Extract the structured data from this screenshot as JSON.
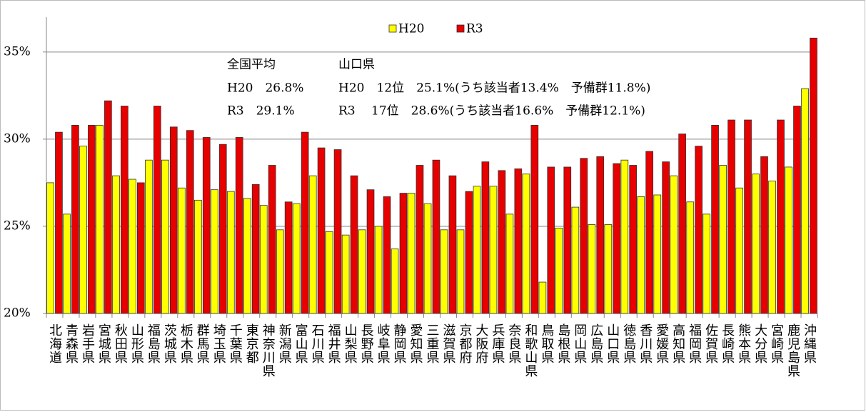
{
  "chart_data": {
    "type": "bar",
    "categories": [
      "北海道",
      "青森県",
      "岩手県",
      "宮城県",
      "秋田県",
      "山形県",
      "福島県",
      "茨城県",
      "栃木県",
      "群馬県",
      "埼玉県",
      "千葉県",
      "東京都",
      "神奈川県",
      "新潟県",
      "富山県",
      "石川県",
      "福井県",
      "山梨県",
      "長野県",
      "岐阜県",
      "静岡県",
      "愛知県",
      "三重県",
      "滋賀県",
      "京都府",
      "大阪府",
      "兵庫県",
      "奈良県",
      "和歌山県",
      "鳥取県",
      "島根県",
      "岡山県",
      "広島県",
      "山口県",
      "徳島県",
      "香川県",
      "愛媛県",
      "高知県",
      "福岡県",
      "佐賀県",
      "長崎県",
      "熊本県",
      "大分県",
      "宮崎県",
      "鹿児島県",
      "沖縄県"
    ],
    "series": [
      {
        "name": "H20",
        "color": "#ffff00",
        "values": [
          27.5,
          25.7,
          29.6,
          30.8,
          27.9,
          27.7,
          28.8,
          28.8,
          27.2,
          26.5,
          27.1,
          27.0,
          26.6,
          26.2,
          24.8,
          26.3,
          27.9,
          24.7,
          24.5,
          24.8,
          25.0,
          23.7,
          26.9,
          26.3,
          24.8,
          24.8,
          27.3,
          27.3,
          25.7,
          28.0,
          21.8,
          24.9,
          26.1,
          25.1,
          25.1,
          28.8,
          26.7,
          26.8,
          27.9,
          26.4,
          25.7,
          28.5,
          27.2,
          28.0,
          27.6,
          28.4,
          32.9
        ]
      },
      {
        "name": "R3",
        "color": "#e60000",
        "values": [
          30.4,
          30.8,
          30.8,
          32.2,
          31.9,
          27.5,
          31.9,
          30.7,
          30.5,
          30.1,
          29.7,
          30.1,
          27.4,
          28.5,
          26.4,
          30.4,
          29.5,
          29.4,
          27.9,
          27.1,
          26.7,
          26.9,
          28.5,
          28.8,
          27.9,
          27.0,
          28.7,
          28.2,
          28.3,
          30.8,
          28.4,
          28.4,
          28.9,
          29.0,
          28.6,
          28.5,
          29.3,
          28.7,
          30.3,
          29.6,
          30.8,
          31.1,
          31.1,
          29.0,
          31.1,
          31.9,
          35.8
        ]
      }
    ],
    "ylim": [
      20,
      37
    ],
    "yticks": [
      {
        "value": 20,
        "label": "20%"
      },
      {
        "value": 25,
        "label": "25%"
      },
      {
        "value": 30,
        "label": "30%"
      },
      {
        "value": 35,
        "label": "35%"
      }
    ],
    "grid": true,
    "legend": "top",
    "annotations": [
      "全国平均",
      "H20　26.8%",
      "R3　29.1%",
      "山口県",
      "H20　12位　25.1%(うち該当者13.4%　予備群11.8%)",
      "R3　 17位　28.6%(うち該当者16.6%　予備群12.1%)"
    ]
  }
}
